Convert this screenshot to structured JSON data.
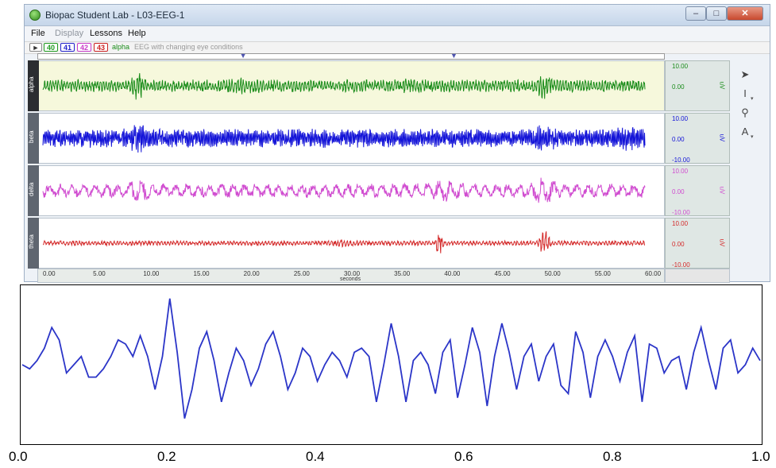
{
  "window": {
    "title": "Biopac Student Lab - L03-EEG-1",
    "controls": {
      "minimize": "–",
      "maximize": "□",
      "close": "✕"
    }
  },
  "menu": [
    "File",
    "Display",
    "Lessons",
    "Help"
  ],
  "channel_bar": {
    "buttons": [
      {
        "label": "40",
        "color": "#1e9a1e"
      },
      {
        "label": "41",
        "color": "#2222cc"
      },
      {
        "label": "42",
        "color": "#c83cc8"
      },
      {
        "label": "43",
        "color": "#cc2222"
      }
    ],
    "selected_name": "alpha",
    "description": "EEG with changing eye conditions"
  },
  "channels": [
    {
      "name": "alpha",
      "color": "#1a8c1a",
      "scale_top": "10.00",
      "scale_mid": "0.00",
      "scale_bottom": "",
      "unit": "uV"
    },
    {
      "name": "beta",
      "color": "#1414d8",
      "scale_top": "10.00",
      "scale_mid": "0.00",
      "scale_bottom": "-10.00",
      "unit": "uV"
    },
    {
      "name": "delta",
      "color": "#d04cd0",
      "scale_top": "10.00",
      "scale_mid": "0.00",
      "scale_bottom": "-10.00",
      "unit": "uV"
    },
    {
      "name": "theta",
      "color": "#d42a2a",
      "scale_top": "10.00",
      "scale_mid": "0.00",
      "scale_bottom": "-10.00",
      "unit": "uV"
    }
  ],
  "time_axis": {
    "ticks": [
      "0.00",
      "5.00",
      "10.00",
      "15.00",
      "20.00",
      "25.00",
      "30.00",
      "35.00",
      "40.00",
      "45.00",
      "50.00",
      "55.00",
      "60.00"
    ],
    "label": "seconds"
  },
  "markers_seconds": [
    20.0,
    41.0
  ],
  "tools": [
    "arrow-tool-icon",
    "ibeam-tool-icon",
    "zoom-tool-icon",
    "annotate-tool-icon"
  ],
  "zoom_plot": {
    "ticks": [
      "0.0",
      "0.2",
      "0.4",
      "0.6",
      "0.8",
      "1.0"
    ],
    "color": "#2b35c8"
  },
  "chart_data": {
    "type": "line",
    "x": [
      0.0,
      0.01,
      0.02,
      0.03,
      0.04,
      0.05,
      0.06,
      0.07,
      0.08,
      0.09,
      0.1,
      0.11,
      0.12,
      0.13,
      0.14,
      0.15,
      0.16,
      0.17,
      0.18,
      0.19,
      0.2,
      0.21,
      0.22,
      0.23,
      0.24,
      0.25,
      0.26,
      0.27,
      0.28,
      0.29,
      0.3,
      0.31,
      0.32,
      0.33,
      0.34,
      0.35,
      0.36,
      0.37,
      0.38,
      0.39,
      0.4,
      0.41,
      0.42,
      0.43,
      0.44,
      0.45,
      0.46,
      0.47,
      0.48,
      0.49,
      0.5,
      0.51,
      0.52,
      0.53,
      0.54,
      0.55,
      0.56,
      0.57,
      0.58,
      0.59,
      0.6,
      0.61,
      0.62,
      0.63,
      0.64,
      0.65,
      0.66,
      0.67,
      0.68,
      0.69,
      0.7,
      0.71,
      0.72,
      0.73,
      0.74,
      0.75,
      0.76,
      0.77,
      0.78,
      0.79,
      0.8,
      0.81,
      0.82,
      0.83,
      0.84,
      0.85,
      0.86,
      0.87,
      0.88,
      0.89,
      0.9,
      0.91,
      0.92,
      0.93,
      0.94,
      0.95,
      0.96,
      0.97,
      0.98,
      0.99,
      1.0
    ],
    "series": [
      {
        "values": [
          0.0,
          -0.1,
          0.1,
          0.4,
          0.9,
          0.6,
          -0.2,
          0.0,
          0.2,
          -0.3,
          -0.3,
          -0.1,
          0.2,
          0.6,
          0.5,
          0.2,
          0.7,
          0.2,
          -0.6,
          0.2,
          1.6,
          0.3,
          -1.3,
          -0.6,
          0.4,
          0.8,
          0.1,
          -0.9,
          -0.2,
          0.4,
          0.1,
          -0.5,
          -0.1,
          0.5,
          0.8,
          0.2,
          -0.6,
          -0.2,
          0.4,
          0.2,
          -0.4,
          0.0,
          0.3,
          0.1,
          -0.3,
          0.3,
          0.4,
          0.2,
          -0.9,
          0.0,
          1.0,
          0.2,
          -0.9,
          0.1,
          0.3,
          0.0,
          -0.7,
          0.3,
          0.6,
          -0.8,
          0.0,
          0.9,
          0.3,
          -1.0,
          0.2,
          1.0,
          0.3,
          -0.6,
          0.2,
          0.5,
          -0.4,
          0.2,
          0.5,
          -0.5,
          -0.7,
          0.8,
          0.3,
          -0.8,
          0.2,
          0.6,
          0.2,
          -0.4,
          0.3,
          0.7,
          -0.9,
          0.5,
          0.4,
          -0.2,
          0.1,
          0.2,
          -0.6,
          0.3,
          0.9,
          0.1,
          -0.6,
          0.4,
          0.6,
          -0.2,
          0.0,
          0.4,
          0.1
        ]
      }
    ],
    "xlim": [
      0.0,
      1.0
    ]
  }
}
